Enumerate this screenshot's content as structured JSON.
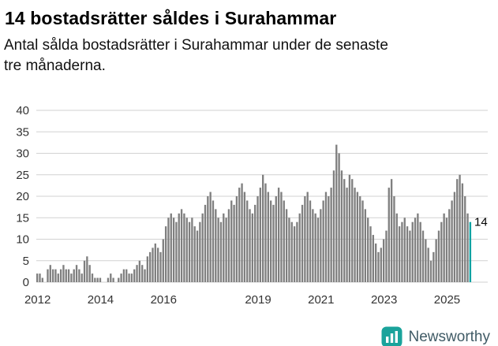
{
  "header": {
    "title": "14 bostadsrätter såldes i Surahammar",
    "subtitle_line1": "Antal sålda bostadsrätter i Surahammar under de senaste",
    "subtitle_line2": "tre månaderna."
  },
  "chart_data": {
    "type": "bar",
    "title": "14 bostadsrätter såldes i Surahammar",
    "subtitle": "Antal sålda bostadsrätter i Surahammar under de senaste tre månaderna.",
    "x_start": "2012-01",
    "x_end": "2025-10",
    "x_unit": "month",
    "values": [
      2,
      2,
      1,
      0,
      3,
      4,
      3,
      3,
      2,
      3,
      4,
      3,
      3,
      2,
      3,
      4,
      3,
      2,
      5,
      6,
      4,
      2,
      1,
      1,
      1,
      0,
      0,
      1,
      2,
      1,
      0,
      1,
      2,
      3,
      3,
      2,
      2,
      3,
      4,
      5,
      4,
      3,
      6,
      7,
      8,
      9,
      8,
      7,
      10,
      13,
      15,
      16,
      15,
      14,
      16,
      17,
      16,
      15,
      14,
      15,
      13,
      12,
      14,
      16,
      18,
      20,
      21,
      19,
      17,
      15,
      14,
      16,
      15,
      17,
      19,
      18,
      20,
      22,
      23,
      21,
      19,
      17,
      16,
      18,
      20,
      22,
      25,
      23,
      21,
      19,
      18,
      20,
      22,
      21,
      19,
      17,
      15,
      14,
      13,
      14,
      16,
      18,
      20,
      21,
      19,
      17,
      16,
      15,
      17,
      19,
      21,
      20,
      22,
      26,
      32,
      30,
      26,
      24,
      22,
      25,
      24,
      22,
      21,
      20,
      19,
      17,
      15,
      13,
      11,
      9,
      7,
      8,
      10,
      12,
      22,
      24,
      20,
      16,
      13,
      14,
      15,
      13,
      12,
      14,
      15,
      16,
      14,
      12,
      10,
      8,
      5,
      7,
      10,
      12,
      14,
      16,
      15,
      17,
      19,
      21,
      24,
      25,
      23,
      20,
      16,
      14
    ],
    "ylim": [
      0,
      40
    ],
    "y_ticks": [
      0,
      5,
      10,
      15,
      20,
      25,
      30,
      35,
      40
    ],
    "x_tick_labels": [
      "2012",
      "2014",
      "2016",
      "2019",
      "2021",
      "2023",
      "2025"
    ],
    "x_tick_month_indices": [
      0,
      24,
      48,
      84,
      108,
      132,
      156
    ],
    "grid": "horizontal",
    "legend": "none",
    "bar_color": "#7f7f7f",
    "highlight_color": "#00a2a2",
    "highlight_last": true,
    "annotation": {
      "text": "14",
      "value": 14
    },
    "xlabel": "",
    "ylabel": ""
  },
  "footer": {
    "brand": "Newsworthy",
    "logo_color": "#1aa39b"
  }
}
